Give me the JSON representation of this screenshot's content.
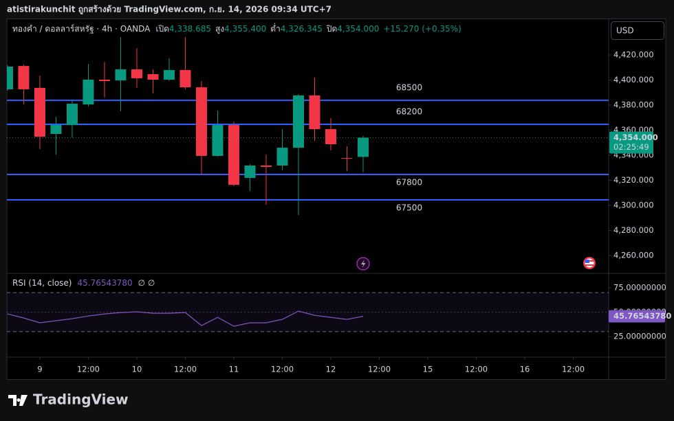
{
  "header": {
    "text": "atistirakunchit ถูกสร้างด้วย TradingView.com, ก.ย. 14, 2026 09:34 UTC+7"
  },
  "footer": {
    "logo": "TradingView"
  },
  "currency": "USD",
  "chart_data": [
    {
      "type": "candlestick",
      "symbol": "ทองคำ / ดอลลาร์สหรัฐ · 4h · OANDA",
      "legend": {
        "open_label": "เปิด",
        "open": "4,338.685",
        "high_label": "สูง",
        "high": "4,355.400",
        "low_label": "ต่ำ",
        "low": "4,326.345",
        "close_label": "ปิด",
        "close": "4,354.000",
        "change": "+15.270 (+0.35%)"
      },
      "x": [
        0,
        1,
        2,
        3,
        4,
        5,
        6,
        7,
        8,
        9,
        10,
        11,
        12,
        13,
        14,
        15,
        16,
        17,
        18,
        19,
        20,
        21,
        22
      ],
      "open": [
        4392.6,
        4411.2,
        4393.7,
        4357.0,
        4364.1,
        4380.5,
        4400.3,
        4399.7,
        4408.5,
        4404.7,
        4400.3,
        4408.0,
        4394.2,
        4339.5,
        4364.1,
        4321.9,
        4331.8,
        4331.8,
        4346.0,
        4387.7,
        4360.8,
        4337.8,
        4338.685
      ],
      "high": [
        4411.8,
        4412.3,
        4403.6,
        4370.7,
        4383.8,
        4412.9,
        4414.5,
        4434.2,
        4425.5,
        4408.5,
        4417.3,
        4434.2,
        4399.2,
        4375.6,
        4366.8,
        4332.9,
        4340.5,
        4360.8,
        4388.8,
        4401.9,
        4369.6,
        4347.1,
        4355.4
      ],
      "low": [
        4391.5,
        4380.5,
        4344.9,
        4340.5,
        4354.2,
        4378.9,
        4386.0,
        4375.1,
        4393.7,
        4389.3,
        4399.2,
        4392.6,
        4324.7,
        4338.9,
        4315.3,
        4311.5,
        4300.5,
        4328.0,
        4292.3,
        4351.5,
        4343.8,
        4327.4,
        4326.345
      ],
      "close": [
        4410.7,
        4392.6,
        4354.8,
        4364.1,
        4381.1,
        4400.3,
        4399.2,
        4408.5,
        4401.4,
        4400.3,
        4408.0,
        4394.2,
        4339.5,
        4364.1,
        4316.4,
        4331.8,
        4330.7,
        4346.0,
        4387.7,
        4360.8,
        4348.8,
        4337.3,
        4354.0
      ],
      "up_color": "#089981",
      "down_color": "#f23645",
      "xlim": [
        -0.04,
        37.19
      ],
      "xticks": [
        {
          "value": 2,
          "label": "9"
        },
        {
          "value": 5,
          "label": "12:00"
        },
        {
          "value": 8,
          "label": "10"
        },
        {
          "value": 11,
          "label": "12:00"
        },
        {
          "value": 14,
          "label": "11"
        },
        {
          "value": 17,
          "label": "12:00"
        },
        {
          "value": 20,
          "label": "12"
        },
        {
          "value": 23,
          "label": "12:00"
        },
        {
          "value": 26,
          "label": "15"
        },
        {
          "value": 29,
          "label": "12:00"
        },
        {
          "value": 32,
          "label": "16"
        },
        {
          "value": 35,
          "label": "12:00"
        }
      ],
      "ylim": [
        4245.8,
        4448.5
      ],
      "yticks": [
        {
          "value": 4260,
          "label": "4,260.000"
        },
        {
          "value": 4280,
          "label": "4,280.000"
        },
        {
          "value": 4300,
          "label": "4,300.000"
        },
        {
          "value": 4320,
          "label": "4,320.000"
        },
        {
          "value": 4340,
          "label": "4,340.000"
        },
        {
          "value": 4360,
          "label": "4,360.000"
        },
        {
          "value": 4380,
          "label": "4,380.000"
        },
        {
          "value": 4400,
          "label": "4,400.000"
        },
        {
          "value": 4420,
          "label": "4,420.000"
        }
      ],
      "grid": false,
      "levels": [
        {
          "price": 4383.8,
          "name": "68500"
        },
        {
          "price": 4364.7,
          "name": "68200"
        },
        {
          "price": 4324.7,
          "name": "67800"
        },
        {
          "price": 4304.4,
          "name": "67500"
        }
      ],
      "level_color": "#2962ff",
      "last_price": {
        "value": 4354,
        "label": "4,354.000",
        "countdown": "02:25:49"
      }
    },
    {
      "type": "line",
      "title": "RSI (14, close)",
      "value_text": "45.76543780",
      "extra": "∅ ∅",
      "x": [
        0,
        1,
        2,
        3,
        4,
        5,
        6,
        7,
        8,
        9,
        10,
        11,
        12,
        13,
        14,
        15,
        16,
        17,
        18,
        19,
        20,
        21,
        22
      ],
      "values": [
        48.2,
        44.0,
        39.1,
        41.2,
        43.3,
        46.1,
        48.2,
        49.6,
        50.4,
        48.9,
        48.9,
        49.6,
        36.3,
        44.7,
        35.6,
        39.1,
        39.1,
        42.6,
        51.1,
        46.8,
        44.7,
        42.6,
        45.7654378
      ],
      "value_labels": [
        null,
        null,
        null,
        null,
        null,
        null,
        null,
        null,
        null,
        null,
        null,
        null,
        null,
        null,
        null,
        null,
        null,
        null,
        null,
        null,
        null,
        null,
        "45.76543780"
      ],
      "color": "#7e57c2",
      "ylim": [
        3.9,
        89.8
      ],
      "yticks": [
        {
          "value": 25,
          "label": "25.00000000"
        },
        {
          "value": 50,
          "label": "50.00000000"
        },
        {
          "value": 75,
          "label": "75.00000000"
        }
      ],
      "bands": [
        30,
        50,
        70
      ]
    }
  ]
}
